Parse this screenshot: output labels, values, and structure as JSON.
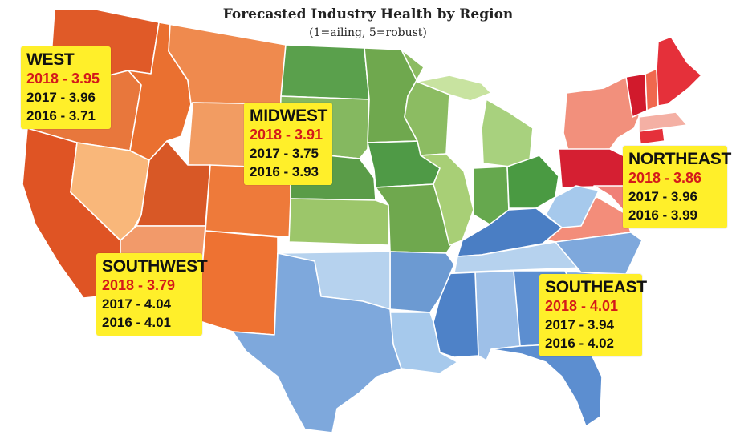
{
  "title": "Forecasted Industry Health by Region",
  "subtitle": "(1=ailing, 5=robust)",
  "colors": {
    "west": "#e05a28",
    "northeast": "#d8303a",
    "midwest": "#7fb35a",
    "southeast": "#6f9fd8",
    "label_bg": "#ffef2a",
    "current_year_text": "#d41a1a"
  },
  "regions": [
    {
      "name": "WEST",
      "current": "2018 - 3.95",
      "prev1": "2017 - 3.96",
      "prev2": "2016 - 3.71"
    },
    {
      "name": "MIDWEST",
      "current": "2018 - 3.91",
      "prev1": "2017 - 3.75",
      "prev2": "2016 - 3.93"
    },
    {
      "name": "NORTHEAST",
      "current": "2018 - 3.86",
      "prev1": "2017 - 3.96",
      "prev2": "2016 - 3.99"
    },
    {
      "name": "SOUTHWEST",
      "current": "2018 - 3.79",
      "prev1": "2017 - 4.04",
      "prev2": "2016 - 4.01"
    },
    {
      "name": "SOUTHEAST",
      "current": "2018 - 4.01",
      "prev1": "2017 - 3.94",
      "prev2": "2016 - 4.02"
    }
  ]
}
